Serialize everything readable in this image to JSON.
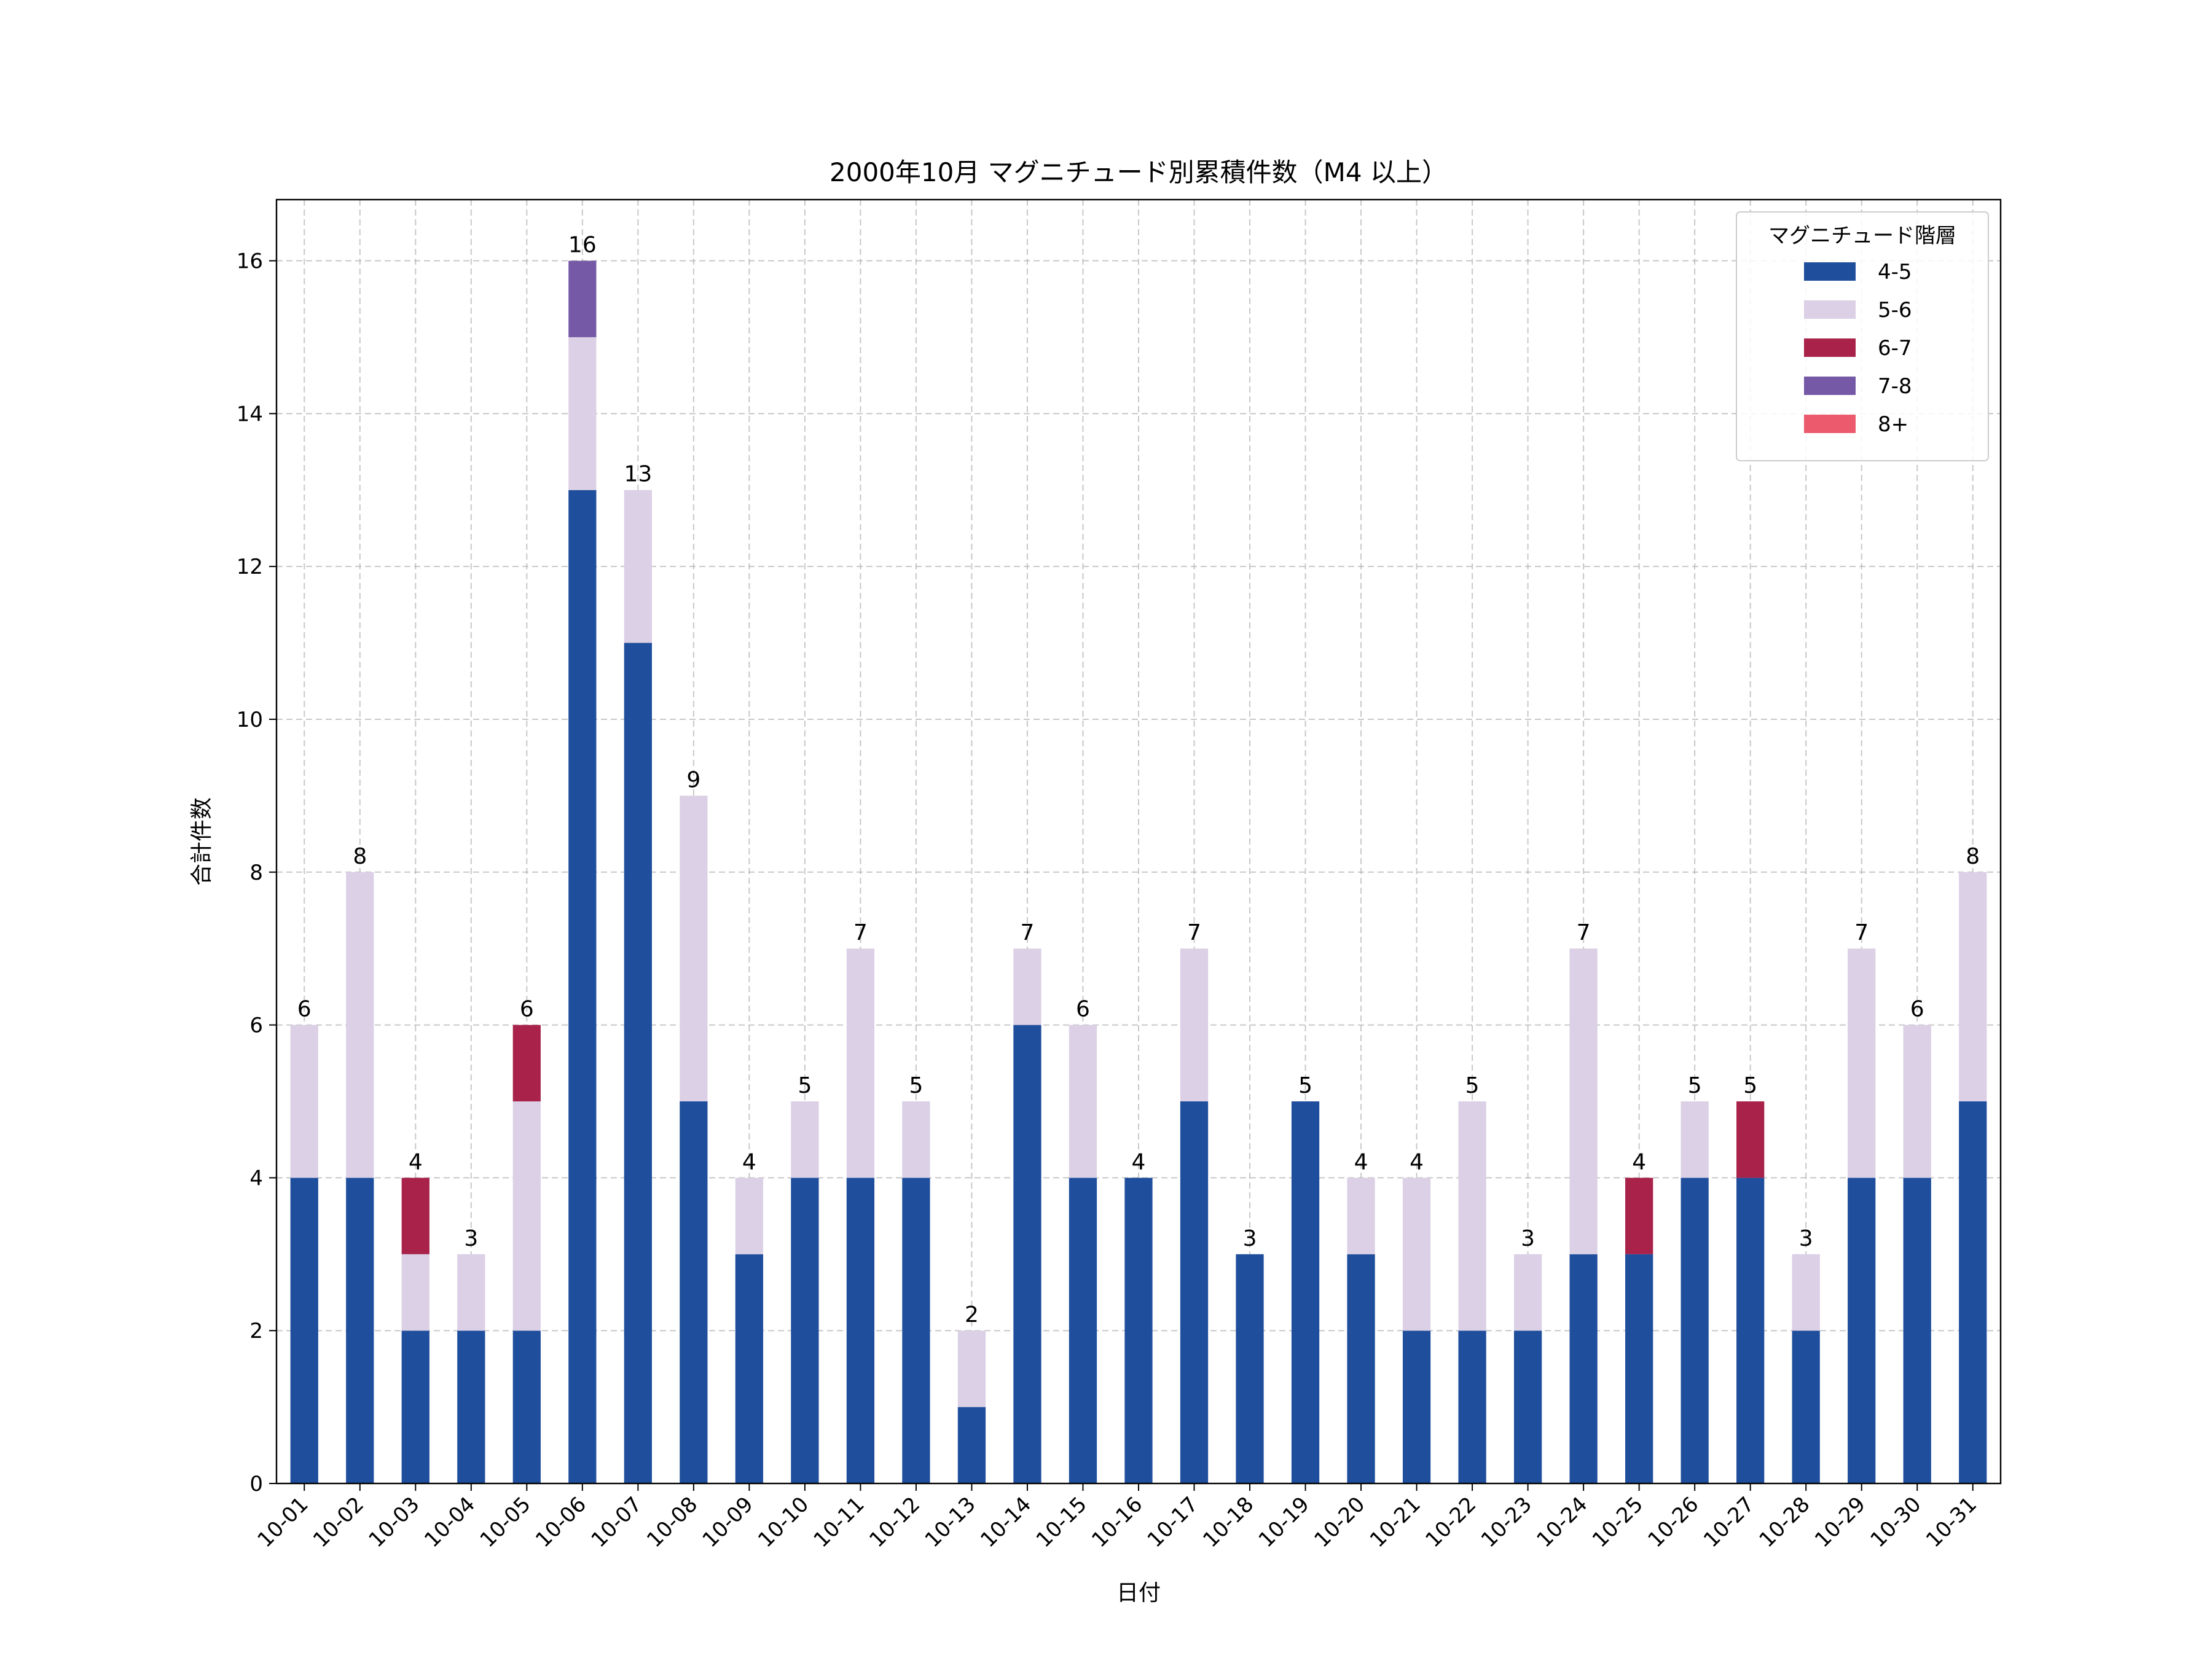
{
  "chart_data": {
    "type": "bar",
    "stacked": true,
    "title": "2000年10月 マグニチュード別累積件数（M4 以上）",
    "xlabel": "日付",
    "ylabel": "合計件数",
    "ylim": [
      0,
      16.8
    ],
    "yticks": [
      0,
      2,
      4,
      6,
      8,
      10,
      12,
      14,
      16
    ],
    "grid": true,
    "legend": {
      "title": "マグニチュード階層",
      "placement": "top-right"
    },
    "categories": [
      "10-01",
      "10-02",
      "10-03",
      "10-04",
      "10-05",
      "10-06",
      "10-07",
      "10-08",
      "10-09",
      "10-10",
      "10-11",
      "10-12",
      "10-13",
      "10-14",
      "10-15",
      "10-16",
      "10-17",
      "10-18",
      "10-19",
      "10-20",
      "10-21",
      "10-22",
      "10-23",
      "10-24",
      "10-25",
      "10-26",
      "10-27",
      "10-28",
      "10-29",
      "10-30",
      "10-31"
    ],
    "series": [
      {
        "name": "4-5",
        "color": "#1f4e9c",
        "values": [
          4,
          4,
          2,
          2,
          2,
          13,
          11,
          5,
          3,
          4,
          4,
          4,
          1,
          6,
          4,
          4,
          5,
          3,
          5,
          3,
          2,
          2,
          2,
          3,
          3,
          4,
          4,
          2,
          4,
          4,
          5
        ]
      },
      {
        "name": "5-6",
        "color": "#dbd0e5",
        "values": [
          2,
          4,
          1,
          1,
          3,
          2,
          2,
          4,
          1,
          1,
          3,
          1,
          1,
          1,
          2,
          0,
          2,
          0,
          0,
          1,
          2,
          3,
          1,
          4,
          0,
          1,
          0,
          1,
          3,
          2,
          3
        ]
      },
      {
        "name": "6-7",
        "color": "#a8224a",
        "values": [
          0,
          0,
          1,
          0,
          1,
          0,
          0,
          0,
          0,
          0,
          0,
          0,
          0,
          0,
          0,
          0,
          0,
          0,
          0,
          0,
          0,
          0,
          0,
          0,
          1,
          0,
          1,
          0,
          0,
          0,
          0
        ]
      },
      {
        "name": "7-8",
        "color": "#7559a6",
        "values": [
          0,
          0,
          0,
          0,
          0,
          1,
          0,
          0,
          0,
          0,
          0,
          0,
          0,
          0,
          0,
          0,
          0,
          0,
          0,
          0,
          0,
          0,
          0,
          0,
          0,
          0,
          0,
          0,
          0,
          0,
          0
        ]
      },
      {
        "name": "8+",
        "color": "#ec5a6e",
        "values": [
          0,
          0,
          0,
          0,
          0,
          0,
          0,
          0,
          0,
          0,
          0,
          0,
          0,
          0,
          0,
          0,
          0,
          0,
          0,
          0,
          0,
          0,
          0,
          0,
          0,
          0,
          0,
          0,
          0,
          0,
          0
        ]
      }
    ],
    "totals": [
      6,
      8,
      4,
      3,
      6,
      16,
      13,
      9,
      4,
      5,
      7,
      5,
      2,
      7,
      6,
      4,
      7,
      3,
      5,
      4,
      4,
      5,
      3,
      7,
      4,
      5,
      5,
      3,
      7,
      6,
      8
    ]
  }
}
